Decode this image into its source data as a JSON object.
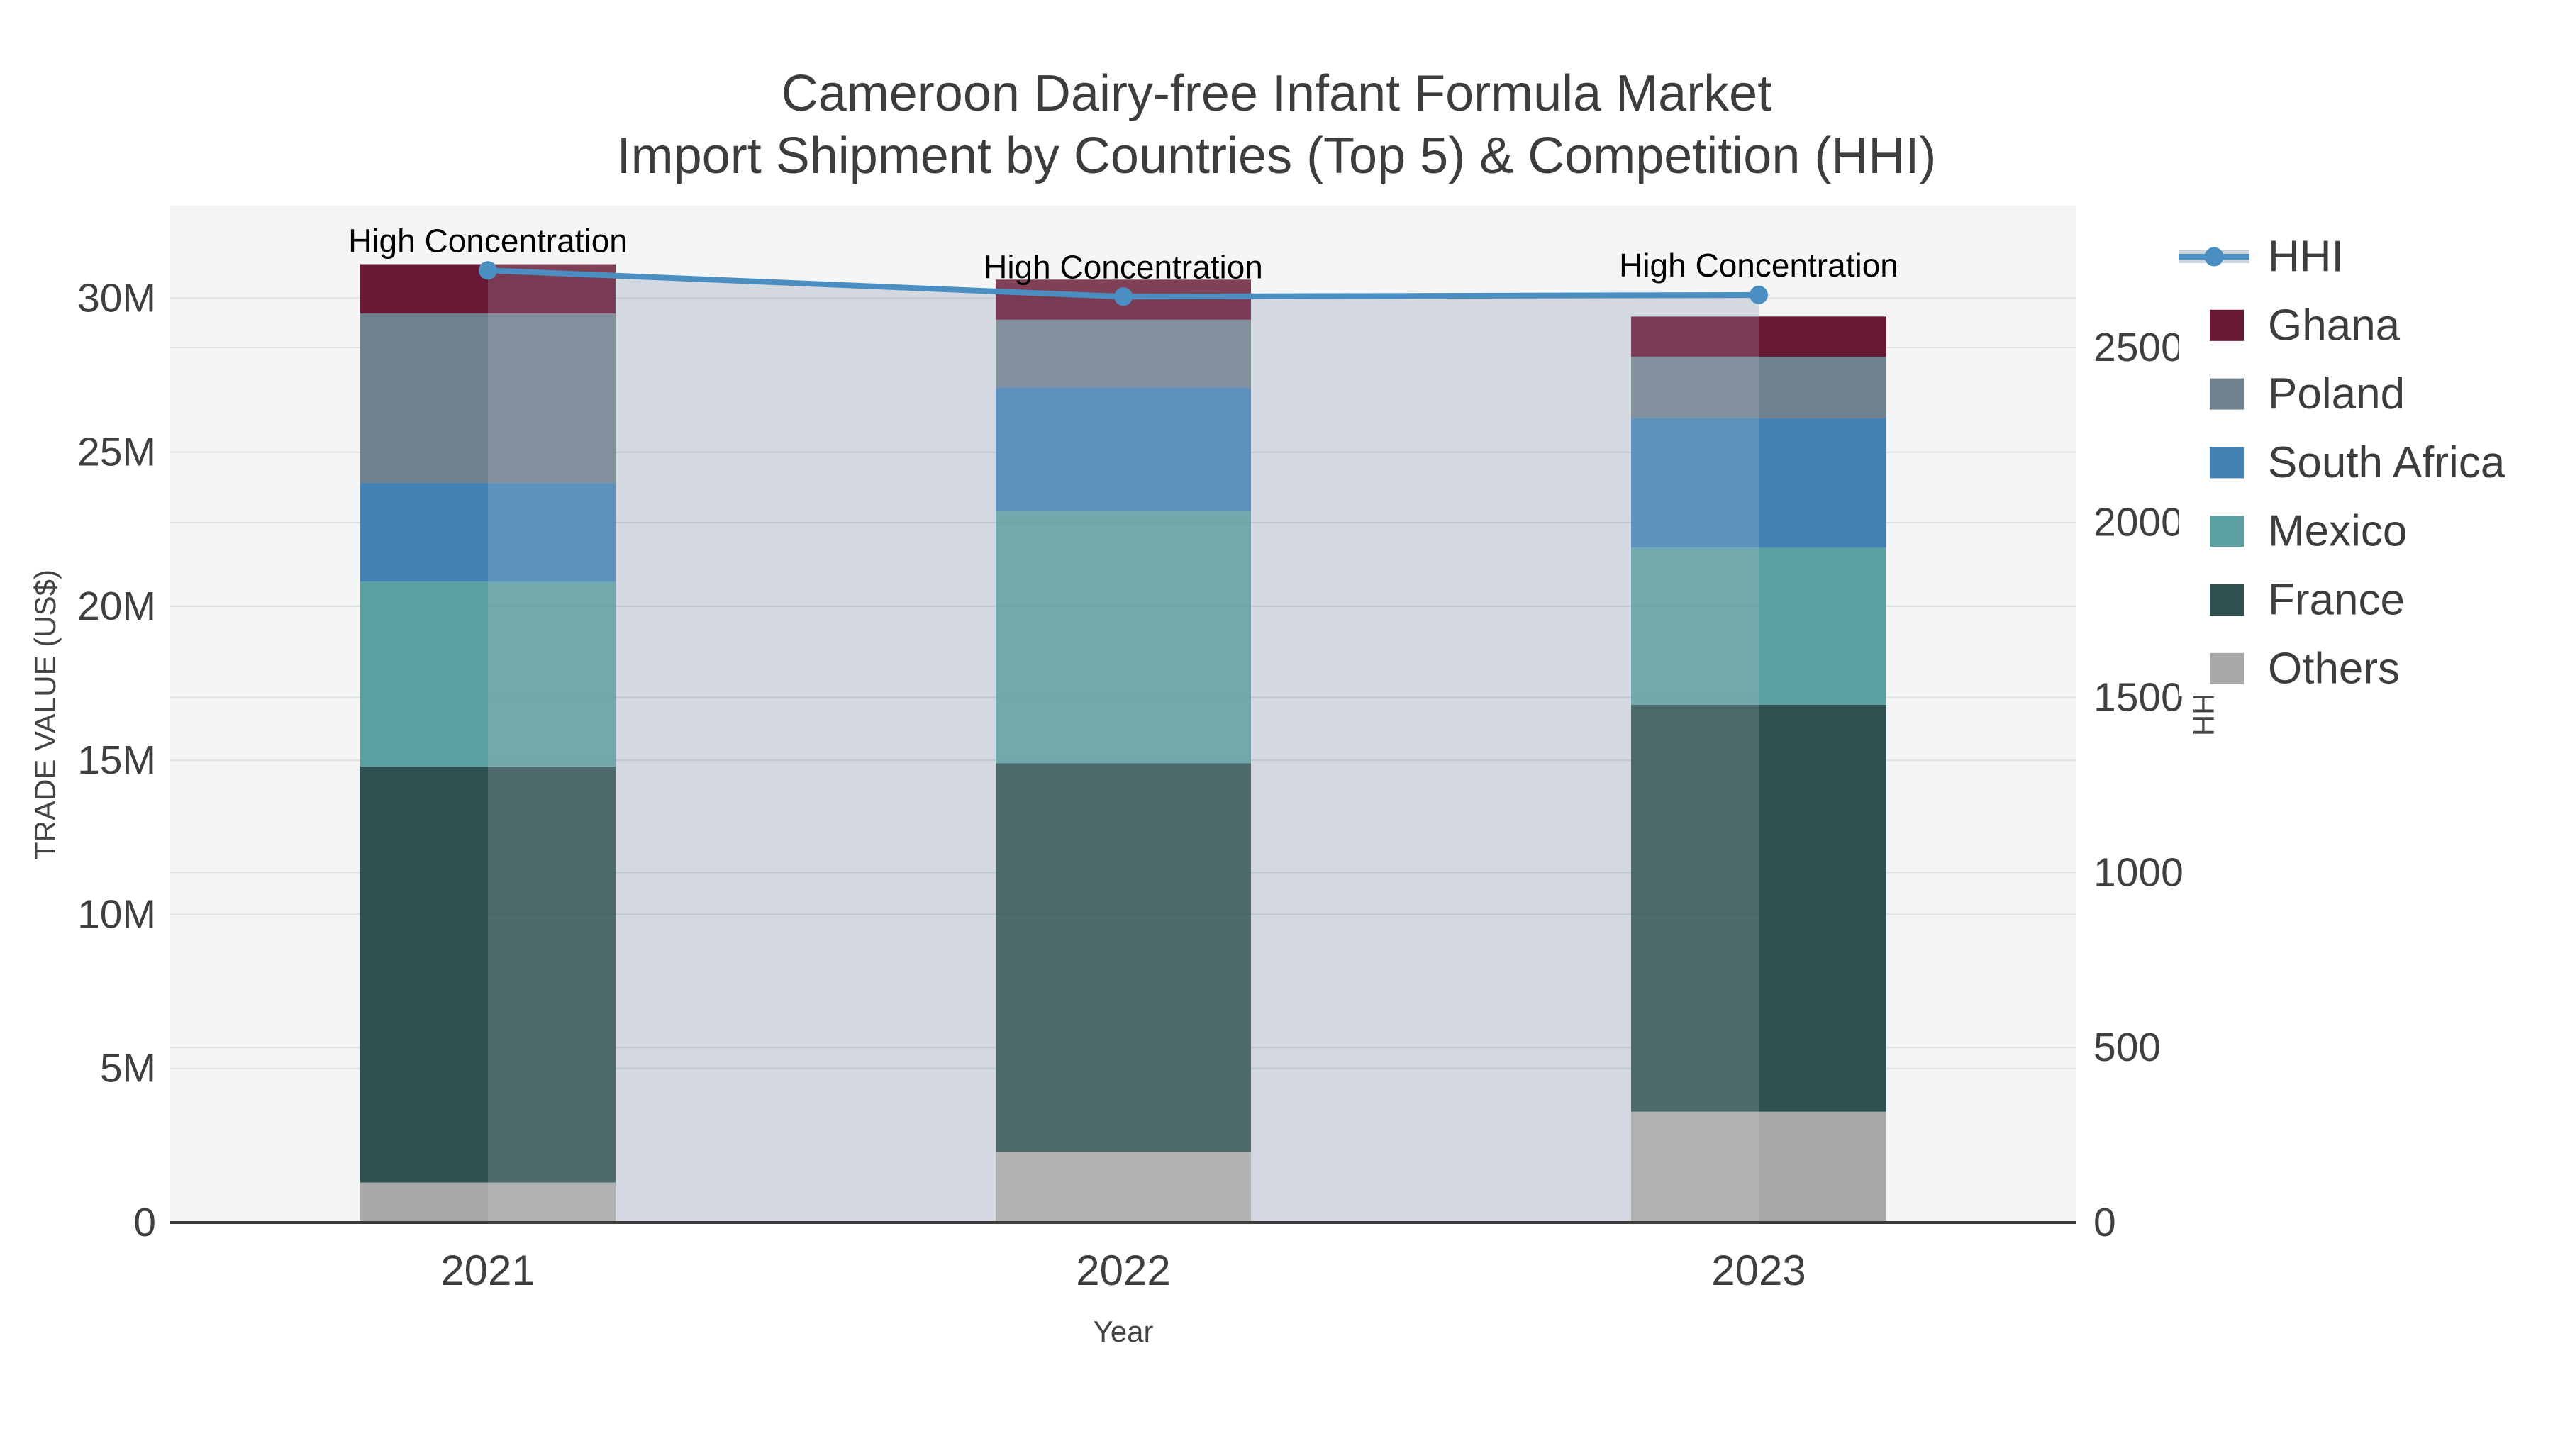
{
  "title": {
    "line1": "Cameroon Dairy-free Infant Formula Market",
    "line2": "Import Shipment by Countries (Top 5) & Competition (HHI)"
  },
  "axes": {
    "x_title": "Year",
    "y_left_title": "TRADE VALUE (US$)",
    "y_right_title": "HHI",
    "y_left_ticks": [
      {
        "label": "0",
        "value": 0
      },
      {
        "label": "5M",
        "value": 5
      },
      {
        "label": "10M",
        "value": 10
      },
      {
        "label": "15M",
        "value": 15
      },
      {
        "label": "20M",
        "value": 20
      },
      {
        "label": "25M",
        "value": 25
      },
      {
        "label": "30M",
        "value": 30
      }
    ],
    "y_right_ticks": [
      {
        "label": "0",
        "value": 0
      },
      {
        "label": "500",
        "value": 500
      },
      {
        "label": "1000",
        "value": 1000
      },
      {
        "label": "1500",
        "value": 1500
      },
      {
        "label": "2000",
        "value": 2000
      },
      {
        "label": "2500",
        "value": 2500
      }
    ]
  },
  "legend": [
    {
      "label": "HHI",
      "type": "line",
      "color": "#4a8ec2",
      "band_color": "#ccd2dc"
    },
    {
      "label": "Ghana",
      "type": "square",
      "color": "#671935"
    },
    {
      "label": "Poland",
      "type": "square",
      "color": "#71808f"
    },
    {
      "label": "South Africa",
      "type": "square",
      "color": "#4282b4"
    },
    {
      "label": "Mexico",
      "type": "square",
      "color": "#5c9fa0"
    },
    {
      "label": "France",
      "type": "square",
      "color": "#2e5051"
    },
    {
      "label": "Others",
      "type": "square",
      "color": "#a9a9a7"
    }
  ],
  "annotations": [
    {
      "text": "High Concentration",
      "year": "2021"
    },
    {
      "text": "High Concentration",
      "year": "2022"
    },
    {
      "text": "High Concentration",
      "year": "2023"
    }
  ],
  "chart_data": {
    "type": "bar",
    "subtype": "stacked-bars-with-secondary-axis-line",
    "title": "Cameroon Dairy-free Infant Formula Market — Import Shipment by Countries (Top 5) & Competition (HHI)",
    "categories": [
      "2021",
      "2022",
      "2023"
    ],
    "unit": "bar values in millions of US$; HHI in index points",
    "series": [
      {
        "name": "Others",
        "color": "#a9a9a7",
        "values": [
          1.3,
          2.3,
          3.6
        ]
      },
      {
        "name": "France",
        "color": "#2e5051",
        "values": [
          13.5,
          12.6,
          13.2
        ]
      },
      {
        "name": "Mexico",
        "color": "#5c9fa0",
        "values": [
          6.0,
          8.2,
          5.1
        ]
      },
      {
        "name": "South Africa",
        "color": "#4282b4",
        "values": [
          3.2,
          4.0,
          4.2
        ]
      },
      {
        "name": "Poland",
        "color": "#71808f",
        "values": [
          5.5,
          2.2,
          2.0
        ]
      },
      {
        "name": "Ghana",
        "color": "#671935",
        "values": [
          1.6,
          1.3,
          1.3
        ]
      }
    ],
    "totals_musd": [
      31.1,
      30.6,
      29.4
    ],
    "line_series": {
      "name": "HHI",
      "axis": "right",
      "color": "#4a8ec2",
      "area_color": "#d4d9e1",
      "values": [
        2720,
        2645,
        2650
      ]
    },
    "xlabel": "Year",
    "ylabel": "TRADE VALUE (US$)",
    "ylabel_right": "HHI",
    "ylim_left_musd": [
      0,
      33
    ],
    "ylim_right": [
      0,
      2905
    ],
    "grid": true,
    "legend_position": "right"
  },
  "colors": {
    "page_bg": "#ffffff",
    "plot_bg": "#f4f5f4",
    "grid": "#dfe2e2",
    "inner_grid": "rgba(125,135,155,0.22)",
    "axis_line": "#3a3a3a",
    "text": "#3f3f3f",
    "title_text": "#3d3d3d",
    "annotation_text": "#000000",
    "legend_bg": "#ffffff"
  }
}
